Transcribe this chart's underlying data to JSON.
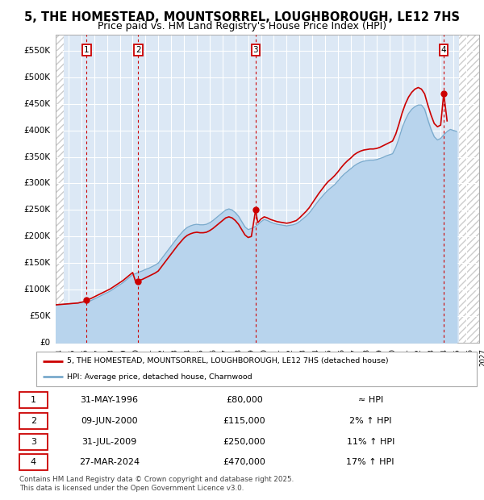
{
  "title_line1": "5, THE HOMESTEAD, MOUNTSORREL, LOUGHBOROUGH, LE12 7HS",
  "title_line2": "Price paid vs. HM Land Registry's House Price Index (HPI)",
  "title_fontsize": 10.5,
  "subtitle_fontsize": 9,
  "ylim": [
    0,
    580000
  ],
  "yticks": [
    0,
    50000,
    100000,
    150000,
    200000,
    250000,
    300000,
    350000,
    400000,
    450000,
    500000,
    550000
  ],
  "ytick_labels": [
    "£0",
    "£50K",
    "£100K",
    "£150K",
    "£200K",
    "£250K",
    "£300K",
    "£350K",
    "£400K",
    "£450K",
    "£500K",
    "£550K"
  ],
  "xmin_year": 1994,
  "xmax_year": 2027,
  "xtick_years": [
    1994,
    1995,
    1996,
    1997,
    1998,
    1999,
    2000,
    2001,
    2002,
    2003,
    2004,
    2005,
    2006,
    2007,
    2008,
    2009,
    2010,
    2011,
    2012,
    2013,
    2014,
    2015,
    2016,
    2017,
    2018,
    2019,
    2020,
    2021,
    2022,
    2023,
    2024,
    2025,
    2026,
    2027
  ],
  "sale_dates_decimal": [
    1996.41,
    2000.44,
    2009.58,
    2024.24
  ],
  "sale_prices": [
    80000,
    115000,
    250000,
    470000
  ],
  "sale_labels": [
    "1",
    "2",
    "3",
    "4"
  ],
  "sale_color": "#cc0000",
  "hpi_fill_color": "#b8d4ed",
  "hpi_line_color": "#7aaacc",
  "plot_bg_color": "#dce8f5",
  "vline_color": "#cc0000",
  "legend_line1": "5, THE HOMESTEAD, MOUNTSORREL, LOUGHBOROUGH, LE12 7HS (detached house)",
  "legend_line2": "HPI: Average price, detached house, Charnwood",
  "table_rows": [
    [
      "1",
      "31-MAY-1996",
      "£80,000",
      "≈ HPI"
    ],
    [
      "2",
      "09-JUN-2000",
      "£115,000",
      "2% ↑ HPI"
    ],
    [
      "3",
      "31-JUL-2009",
      "£250,000",
      "11% ↑ HPI"
    ],
    [
      "4",
      "27-MAR-2024",
      "£470,000",
      "17% ↑ HPI"
    ]
  ],
  "footnote_line1": "Contains HM Land Registry data © Crown copyright and database right 2025.",
  "footnote_line2": "This data is licensed under the Open Government Licence v3.0.",
  "hpi_data_x": [
    1994.0,
    1994.25,
    1994.5,
    1994.75,
    1995.0,
    1995.25,
    1995.5,
    1995.75,
    1996.0,
    1996.25,
    1996.5,
    1996.75,
    1997.0,
    1997.25,
    1997.5,
    1997.75,
    1998.0,
    1998.25,
    1998.5,
    1998.75,
    1999.0,
    1999.25,
    1999.5,
    1999.75,
    2000.0,
    2000.25,
    2000.5,
    2000.75,
    2001.0,
    2001.25,
    2001.5,
    2001.75,
    2002.0,
    2002.25,
    2002.5,
    2002.75,
    2003.0,
    2003.25,
    2003.5,
    2003.75,
    2004.0,
    2004.25,
    2004.5,
    2004.75,
    2005.0,
    2005.25,
    2005.5,
    2005.75,
    2006.0,
    2006.25,
    2006.5,
    2006.75,
    2007.0,
    2007.25,
    2007.5,
    2007.75,
    2008.0,
    2008.25,
    2008.5,
    2008.75,
    2009.0,
    2009.25,
    2009.5,
    2009.75,
    2010.0,
    2010.25,
    2010.5,
    2010.75,
    2011.0,
    2011.25,
    2011.5,
    2011.75,
    2012.0,
    2012.25,
    2012.5,
    2012.75,
    2013.0,
    2013.25,
    2013.5,
    2013.75,
    2014.0,
    2014.25,
    2014.5,
    2014.75,
    2015.0,
    2015.25,
    2015.5,
    2015.75,
    2016.0,
    2016.25,
    2016.5,
    2016.75,
    2017.0,
    2017.25,
    2017.5,
    2017.75,
    2018.0,
    2018.25,
    2018.5,
    2018.75,
    2019.0,
    2019.25,
    2019.5,
    2019.75,
    2020.0,
    2020.25,
    2020.5,
    2020.75,
    2021.0,
    2021.25,
    2021.5,
    2021.75,
    2022.0,
    2022.25,
    2022.5,
    2022.75,
    2023.0,
    2023.25,
    2023.5,
    2023.75,
    2024.0,
    2024.25,
    2024.5,
    2024.75,
    2025.0,
    2025.25
  ],
  "hpi_data_y": [
    71000,
    71500,
    72000,
    72500,
    73000,
    73500,
    74000,
    74500,
    76000,
    77000,
    78000,
    79000,
    82000,
    85000,
    88000,
    91000,
    94000,
    97000,
    101000,
    105000,
    109000,
    113000,
    118000,
    123000,
    128000,
    130000,
    133000,
    135000,
    138000,
    140000,
    143000,
    146000,
    150000,
    158000,
    166000,
    174000,
    182000,
    190000,
    198000,
    205000,
    212000,
    217000,
    220000,
    222000,
    223000,
    222000,
    222000,
    223000,
    226000,
    230000,
    235000,
    240000,
    245000,
    250000,
    252000,
    250000,
    245000,
    238000,
    228000,
    218000,
    213000,
    215000,
    218000,
    222000,
    228000,
    232000,
    230000,
    227000,
    225000,
    223000,
    222000,
    221000,
    220000,
    221000,
    222000,
    224000,
    228000,
    233000,
    238000,
    244000,
    252000,
    260000,
    268000,
    275000,
    282000,
    288000,
    293000,
    298000,
    305000,
    312000,
    318000,
    323000,
    328000,
    333000,
    337000,
    340000,
    342000,
    343000,
    344000,
    344000,
    345000,
    347000,
    349000,
    352000,
    354000,
    356000,
    368000,
    385000,
    405000,
    420000,
    432000,
    440000,
    445000,
    448000,
    448000,
    440000,
    420000,
    402000,
    388000,
    382000,
    385000,
    392000,
    398000,
    402000,
    400000,
    398000
  ],
  "prop_x": [
    1994.0,
    1994.25,
    1994.5,
    1994.75,
    1995.0,
    1995.25,
    1995.5,
    1995.75,
    1996.0,
    1996.25,
    1996.41,
    1996.5,
    1996.75,
    1997.0,
    1997.25,
    1997.5,
    1997.75,
    1998.0,
    1998.25,
    1998.5,
    1998.75,
    1999.0,
    1999.25,
    1999.5,
    1999.75,
    2000.0,
    2000.25,
    2000.44,
    2000.5,
    2000.75,
    2001.0,
    2001.25,
    2001.5,
    2001.75,
    2002.0,
    2002.25,
    2002.5,
    2002.75,
    2003.0,
    2003.25,
    2003.5,
    2003.75,
    2004.0,
    2004.25,
    2004.5,
    2004.75,
    2005.0,
    2005.25,
    2005.5,
    2005.75,
    2006.0,
    2006.25,
    2006.5,
    2006.75,
    2007.0,
    2007.25,
    2007.5,
    2007.75,
    2008.0,
    2008.25,
    2008.5,
    2008.75,
    2009.0,
    2009.25,
    2009.58,
    2009.75,
    2010.0,
    2010.25,
    2010.5,
    2010.75,
    2011.0,
    2011.25,
    2011.5,
    2011.75,
    2012.0,
    2012.25,
    2012.5,
    2012.75,
    2013.0,
    2013.25,
    2013.5,
    2013.75,
    2014.0,
    2014.25,
    2014.5,
    2014.75,
    2015.0,
    2015.25,
    2015.5,
    2015.75,
    2016.0,
    2016.25,
    2016.5,
    2016.75,
    2017.0,
    2017.25,
    2017.5,
    2017.75,
    2018.0,
    2018.25,
    2018.5,
    2018.75,
    2019.0,
    2019.25,
    2019.5,
    2019.75,
    2020.0,
    2020.25,
    2020.5,
    2020.75,
    2021.0,
    2021.25,
    2021.5,
    2021.75,
    2022.0,
    2022.25,
    2022.5,
    2022.75,
    2023.0,
    2023.25,
    2023.5,
    2023.75,
    2024.0,
    2024.24,
    2024.5
  ],
  "prop_y": [
    71000,
    71500,
    72000,
    72500,
    73000,
    73500,
    74000,
    74500,
    76000,
    77000,
    80000,
    81000,
    83000,
    86000,
    89000,
    92000,
    95000,
    98000,
    101000,
    105000,
    109000,
    113000,
    117000,
    122000,
    127000,
    132000,
    113000,
    115000,
    117000,
    119000,
    122000,
    125000,
    128000,
    131000,
    135000,
    143000,
    151000,
    159000,
    167000,
    175000,
    183000,
    190000,
    197000,
    202000,
    205000,
    207000,
    208000,
    207000,
    207000,
    208000,
    211000,
    215000,
    220000,
    225000,
    230000,
    235000,
    237000,
    235000,
    230000,
    223000,
    213000,
    203000,
    198000,
    200000,
    250000,
    226000,
    233000,
    237000,
    235000,
    232000,
    230000,
    228000,
    227000,
    226000,
    225000,
    226000,
    228000,
    230000,
    235000,
    241000,
    247000,
    254000,
    263000,
    272000,
    281000,
    289000,
    297000,
    304000,
    309000,
    315000,
    322000,
    330000,
    337000,
    343000,
    348000,
    354000,
    358000,
    361000,
    363000,
    364000,
    365000,
    365000,
    366000,
    368000,
    371000,
    374000,
    377000,
    380000,
    393000,
    412000,
    433000,
    450000,
    463000,
    472000,
    478000,
    481000,
    478000,
    469000,
    448000,
    429000,
    413000,
    407000,
    410000,
    470000,
    418000
  ]
}
